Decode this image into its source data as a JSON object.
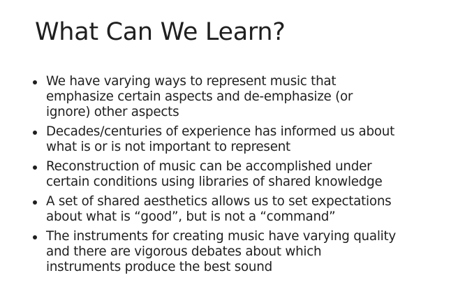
{
  "slide": {
    "title": "What Can We Learn?",
    "bullets": [
      {
        "lines": [
          "We have varying ways to represent music that",
          "emphasize certain aspects and de-emphasize (or",
          "ignore) other aspects"
        ]
      },
      {
        "lines": [
          "Decades/centuries of experience has informed us about",
          "what is or is not important to represent"
        ]
      },
      {
        "lines": [
          "Reconstruction of music can be accomplished under",
          "certain conditions using libraries of shared knowledge"
        ]
      },
      {
        "lines": [
          "A set of shared aesthetics allows us to set expectations",
          "about what is “good”, but is not a “command”"
        ]
      },
      {
        "lines": [
          "The instruments for creating music have varying quality",
          "and there are vigorous debates about which",
          "instruments produce the best sound"
        ]
      }
    ]
  }
}
